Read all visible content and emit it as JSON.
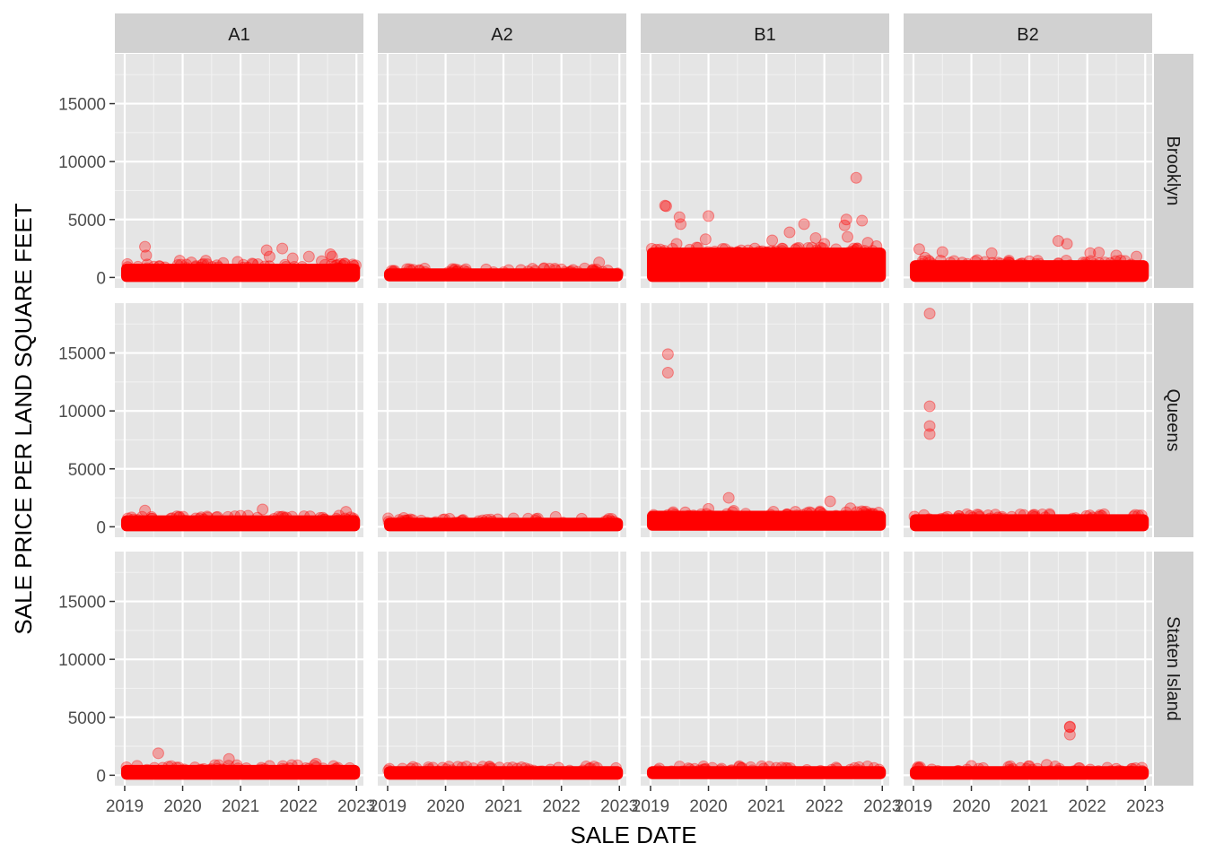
{
  "chart_data": {
    "type": "scatter",
    "xlabel": "SALE DATE",
    "ylabel": "SALE PRICE PER LAND SQUARE FEET",
    "facet_columns": [
      "A1",
      "A2",
      "B1",
      "B2"
    ],
    "facet_rows": [
      "Brooklyn",
      "Queens",
      "Staten Island"
    ],
    "x_ticks": [
      "2019",
      "2020",
      "2021",
      "2022",
      "2023"
    ],
    "y_ticks": [
      0,
      5000,
      10000,
      15000
    ],
    "xlim": [
      2018.83,
      2023.12
    ],
    "ylim": [
      -900,
      19300
    ],
    "grid": true,
    "point_color": "#FF0000",
    "panel_background": "#E5E5E5",
    "strip_background": "#D1D1D1",
    "panels": [
      {
        "column": "A1",
        "row": "Brooklyn",
        "band": {
          "x": [
            2019.0,
            2023.0
          ],
          "y": [
            0,
            800
          ]
        },
        "points": [
          [
            2019.35,
            2650
          ],
          [
            2019.37,
            1900
          ],
          [
            2019.05,
            900
          ],
          [
            2019.6,
            950
          ],
          [
            2019.95,
            1450
          ],
          [
            2020.15,
            1300
          ],
          [
            2020.4,
            1450
          ],
          [
            2020.7,
            1250
          ],
          [
            2020.95,
            1350
          ],
          [
            2021.2,
            1200
          ],
          [
            2021.45,
            2350
          ],
          [
            2021.5,
            1800
          ],
          [
            2021.72,
            2500
          ],
          [
            2021.9,
            1650
          ],
          [
            2022.18,
            1800
          ],
          [
            2022.4,
            1400
          ],
          [
            2022.55,
            2000
          ],
          [
            2022.58,
            1800
          ],
          [
            2022.8,
            1200
          ],
          [
            2022.95,
            1000
          ]
        ]
      },
      {
        "column": "A2",
        "row": "Brooklyn",
        "band": {
          "x": [
            2019.0,
            2023.0
          ],
          "y": [
            50,
            400
          ]
        },
        "points": [
          [
            2019.1,
            550
          ],
          [
            2019.4,
            600
          ],
          [
            2019.65,
            450
          ],
          [
            2020.2,
            500
          ],
          [
            2020.7,
            700
          ],
          [
            2021.3,
            650
          ],
          [
            2021.5,
            750
          ],
          [
            2021.7,
            800
          ],
          [
            2022.0,
            700
          ],
          [
            2022.2,
            650
          ],
          [
            2022.65,
            1300
          ],
          [
            2022.8,
            600
          ]
        ]
      },
      {
        "column": "B1",
        "row": "Brooklyn",
        "band": {
          "x": [
            2019.0,
            2023.0
          ],
          "y": [
            0,
            2200
          ]
        },
        "points": [
          [
            2019.25,
            6200
          ],
          [
            2019.27,
            6150
          ],
          [
            2019.5,
            5200
          ],
          [
            2019.52,
            4600
          ],
          [
            2020.0,
            5300
          ],
          [
            2019.95,
            3300
          ],
          [
            2019.45,
            2900
          ],
          [
            2020.5,
            2200
          ],
          [
            2021.4,
            3900
          ],
          [
            2021.65,
            4600
          ],
          [
            2021.85,
            3400
          ],
          [
            2022.35,
            4500
          ],
          [
            2022.38,
            5000
          ],
          [
            2022.55,
            8600
          ],
          [
            2022.65,
            4900
          ],
          [
            2022.4,
            3500
          ],
          [
            2021.1,
            3200
          ],
          [
            2022.75,
            3000
          ],
          [
            2022.9,
            2700
          ],
          [
            2022.0,
            2900
          ],
          [
            2019.1,
            2400
          ],
          [
            2020.8,
            2500
          ]
        ]
      },
      {
        "column": "B2",
        "row": "Brooklyn",
        "band": {
          "x": [
            2019.0,
            2023.0
          ],
          "y": [
            0,
            1100
          ]
        },
        "points": [
          [
            2019.1,
            2450
          ],
          [
            2019.5,
            2200
          ],
          [
            2019.2,
            1700
          ],
          [
            2020.35,
            2100
          ],
          [
            2020.1,
            1500
          ],
          [
            2021.5,
            3150
          ],
          [
            2021.65,
            2900
          ],
          [
            2022.05,
            2100
          ],
          [
            2022.2,
            2150
          ],
          [
            2022.5,
            1900
          ],
          [
            2022.85,
            1800
          ],
          [
            2021.0,
            1400
          ]
        ]
      },
      {
        "column": "A1",
        "row": "Queens",
        "band": {
          "x": [
            2019.0,
            2023.0
          ],
          "y": [
            0,
            600
          ]
        },
        "points": [
          [
            2019.35,
            1400
          ],
          [
            2021.38,
            1500
          ],
          [
            2022.82,
            1300
          ],
          [
            2019.9,
            900
          ],
          [
            2020.6,
            850
          ],
          [
            2021.0,
            950
          ],
          [
            2022.2,
            900
          ]
        ]
      },
      {
        "column": "A2",
        "row": "Queens",
        "band": {
          "x": [
            2019.0,
            2023.0
          ],
          "y": [
            0,
            400
          ]
        },
        "points": [
          [
            2021.9,
            850
          ],
          [
            2022.35,
            700
          ],
          [
            2020.9,
            650
          ],
          [
            2019.3,
            550
          ]
        ]
      },
      {
        "column": "B1",
        "row": "Queens",
        "band": {
          "x": [
            2019.0,
            2023.0
          ],
          "y": [
            50,
            1000
          ]
        },
        "points": [
          [
            2019.3,
            14900
          ],
          [
            2019.3,
            13300
          ],
          [
            2020.35,
            2500
          ],
          [
            2022.1,
            2200
          ],
          [
            2020.0,
            1550
          ],
          [
            2022.45,
            1600
          ],
          [
            2019.6,
            1250
          ],
          [
            2021.5,
            1300
          ]
        ]
      },
      {
        "column": "B2",
        "row": "Queens",
        "band": {
          "x": [
            2019.0,
            2023.0
          ],
          "y": [
            0,
            700
          ]
        },
        "points": [
          [
            2019.28,
            18400
          ],
          [
            2019.28,
            10400
          ],
          [
            2019.28,
            8700
          ],
          [
            2019.28,
            8000
          ],
          [
            2020.1,
            1050
          ],
          [
            2021.35,
            1100
          ],
          [
            2022.25,
            950
          ],
          [
            2022.8,
            900
          ]
        ]
      },
      {
        "column": "A1",
        "row": "Staten Island",
        "band": {
          "x": [
            2019.0,
            2023.0
          ],
          "y": [
            0,
            500
          ]
        },
        "points": [
          [
            2019.58,
            1900
          ],
          [
            2020.8,
            1400
          ],
          [
            2022.3,
            1000
          ],
          [
            2021.5,
            800
          ],
          [
            2021.1,
            600
          ]
        ]
      },
      {
        "column": "A2",
        "row": "Staten Island",
        "band": {
          "x": [
            2019.0,
            2023.0
          ],
          "y": [
            0,
            400
          ]
        },
        "points": [
          [
            2019.4,
            550
          ],
          [
            2021.95,
            650
          ],
          [
            2020.6,
            450
          ]
        ]
      },
      {
        "column": "B1",
        "row": "Staten Island",
        "band": {
          "x": [
            2019.0,
            2023.0
          ],
          "y": [
            50,
            400
          ]
        },
        "points": []
      },
      {
        "column": "B2",
        "row": "Staten Island",
        "band": {
          "x": [
            2019.0,
            2023.0
          ],
          "y": [
            0,
            400
          ]
        },
        "points": [
          [
            2021.7,
            4200
          ],
          [
            2021.7,
            4150
          ],
          [
            2021.7,
            3500
          ],
          [
            2021.3,
            900
          ],
          [
            2020.0,
            800
          ],
          [
            2019.1,
            600
          ],
          [
            2022.5,
            550
          ]
        ]
      }
    ]
  }
}
